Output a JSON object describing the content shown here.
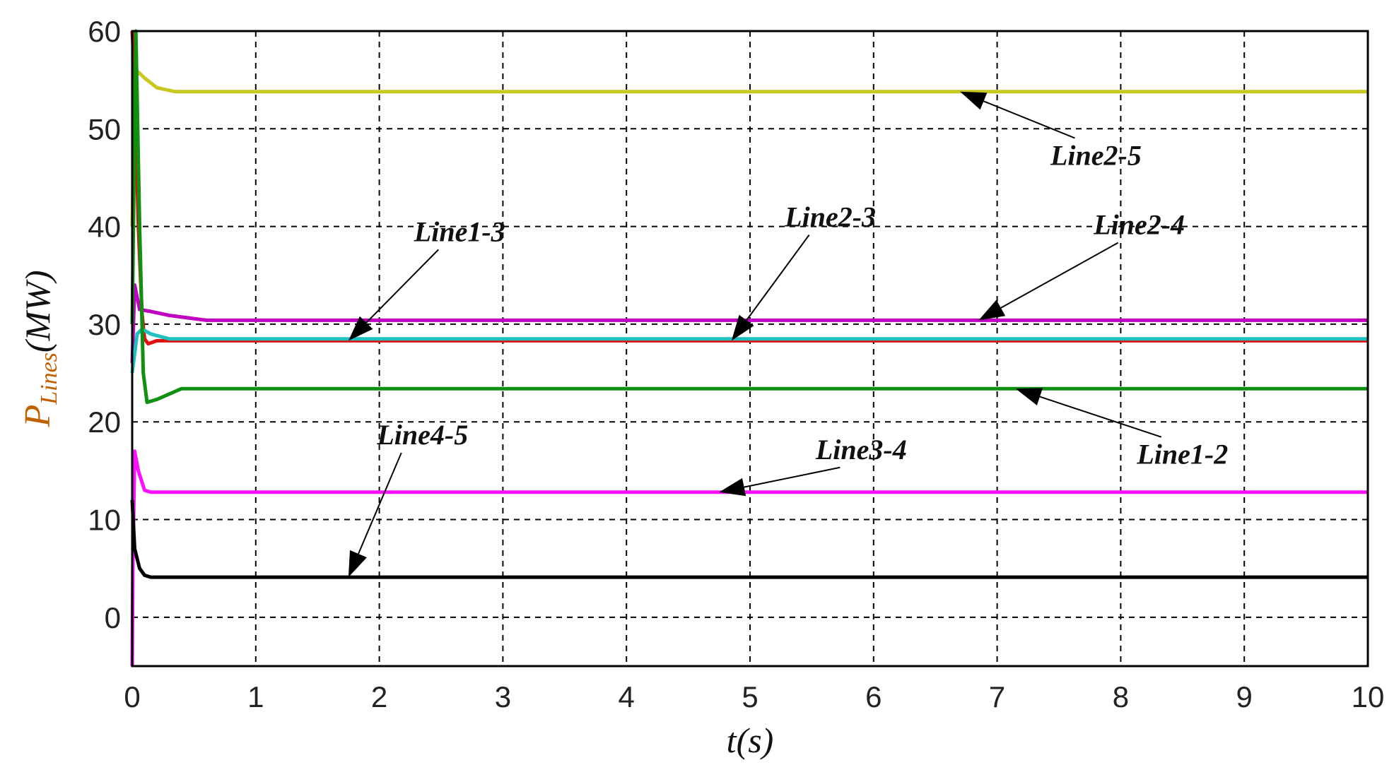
{
  "chart_data": {
    "type": "line",
    "title": "",
    "xlabel": "t(s)",
    "ylabel": {
      "base": "P",
      "subscript": "Lines",
      "unit": "(MW)"
    },
    "xlim": [
      0,
      10
    ],
    "ylim": [
      -5,
      60
    ],
    "xticks": [
      0,
      1,
      2,
      3,
      4,
      5,
      6,
      7,
      8,
      9,
      10
    ],
    "yticks": [
      0,
      10,
      20,
      30,
      40,
      50,
      60
    ],
    "grid": true,
    "legend": "none",
    "series": [
      {
        "name": "Line2-5",
        "color": "#c8c81e",
        "x": [
          0,
          0.02,
          0.05,
          0.1,
          0.2,
          0.35,
          10
        ],
        "y": [
          40,
          55,
          55.8,
          55.2,
          54.2,
          53.8,
          53.8
        ]
      },
      {
        "name": "Line2-4",
        "color": "#c000c0",
        "x": [
          0,
          0.02,
          0.06,
          0.15,
          0.3,
          0.6,
          10
        ],
        "y": [
          26,
          34,
          31.5,
          31.3,
          30.9,
          30.4,
          30.4
        ]
      },
      {
        "name": "Line2-3",
        "color": "#e01010",
        "x": [
          0,
          0.02,
          0.05,
          0.08,
          0.1,
          0.13,
          0.2,
          10
        ],
        "y": [
          60,
          55,
          40,
          31,
          28.5,
          28,
          28.3,
          28.3
        ]
      },
      {
        "name": "Line1-3",
        "color": "#20c0c0",
        "x": [
          0,
          0.04,
          0.08,
          0.15,
          0.3,
          10
        ],
        "y": [
          25,
          29,
          29.5,
          29,
          28.5,
          28.5
        ]
      },
      {
        "name": "Line1-2",
        "color": "#109010",
        "x": [
          0,
          0.03,
          0.06,
          0.09,
          0.12,
          0.2,
          0.4,
          10
        ],
        "y": [
          30,
          60,
          40,
          25,
          22,
          22.3,
          23.4,
          23.4
        ]
      },
      {
        "name": "Line3-4",
        "color": "#ff10ff",
        "x": [
          0,
          0.005,
          0.02,
          0.05,
          0.1,
          0.15,
          10
        ],
        "y": [
          -5,
          5,
          17,
          15,
          13,
          12.8,
          12.8
        ]
      },
      {
        "name": "Line4-5",
        "color": "#000000",
        "x": [
          0,
          0.02,
          0.06,
          0.1,
          0.15,
          10
        ],
        "y": [
          12,
          7,
          5,
          4.3,
          4.1,
          4.1
        ]
      }
    ],
    "annotations": [
      {
        "text": "Line2-5",
        "x": 7.8,
        "y": 46.3,
        "arrow_to": [
          6.7,
          53.8
        ]
      },
      {
        "text": "Line1-3",
        "x": 2.65,
        "y": 38.5,
        "arrow_to": [
          1.75,
          28.3
        ]
      },
      {
        "text": "Line2-3",
        "x": 5.65,
        "y": 40,
        "arrow_to": [
          4.85,
          28.3
        ]
      },
      {
        "text": "Line2-4",
        "x": 8.15,
        "y": 39.2,
        "arrow_to": [
          6.85,
          30.4
        ]
      },
      {
        "text": "Line4-5",
        "x": 2.35,
        "y": 17.7,
        "arrow_to": [
          1.75,
          4.1
        ]
      },
      {
        "text": "Line3-4",
        "x": 5.9,
        "y": 16.2,
        "arrow_to": [
          4.75,
          12.8
        ]
      },
      {
        "text": "Line1-2",
        "x": 8.5,
        "y": 15.7,
        "arrow_to": [
          7.15,
          23.4
        ]
      }
    ]
  }
}
